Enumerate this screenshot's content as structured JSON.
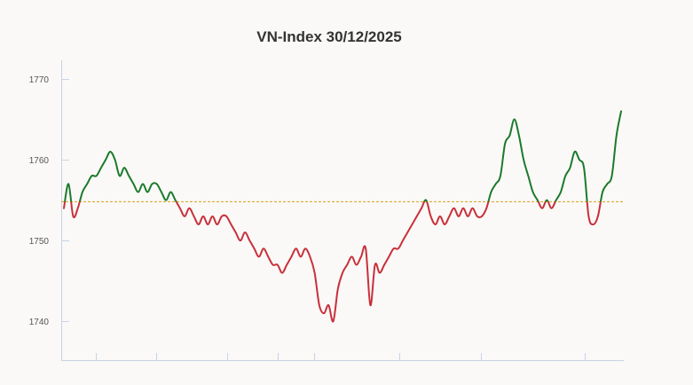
{
  "chart_data": {
    "type": "line",
    "title": "VN-Index 30/12/2025",
    "xlabel": "",
    "ylabel": "",
    "ylim": [
      1735.2,
      1772.3
    ],
    "yticks": [
      1740,
      1750,
      1760,
      1770
    ],
    "reference": {
      "value": 1754.8
    },
    "colors": {
      "up": "#1b7a2b",
      "down": "#c8303b",
      "reference": "#d4a017",
      "axis": "#c8d3e6"
    },
    "grid": false,
    "legend": "none",
    "series": [
      {
        "values": [
          1754.0,
          1757.0,
          1753.0,
          1754.0,
          1756.0,
          1757.0,
          1758.0,
          1758.0,
          1759.0,
          1760.0,
          1761.0,
          1760.0,
          1758.0,
          1759.0,
          1758.0,
          1757.0,
          1756.0,
          1757.0,
          1756.0,
          1757.0,
          1757.0,
          1756.0,
          1755.0,
          1756.0,
          1755.0,
          1754.0,
          1753.0,
          1754.0,
          1753.0,
          1752.0,
          1753.0,
          1752.0,
          1753.0,
          1752.0,
          1753.0,
          1753.0,
          1752.0,
          1751.0,
          1750.0,
          1751.0,
          1750.0,
          1749.0,
          1748.0,
          1749.0,
          1748.0,
          1747.0,
          1747.0,
          1746.0,
          1747.0,
          1748.0,
          1749.0,
          1748.0,
          1749.0,
          1748.0,
          1746.0,
          1742.0,
          1741.0,
          1742.0,
          1740.0,
          1744.0,
          1746.0,
          1747.0,
          1748.0,
          1747.0,
          1748.0,
          1749.0,
          1742.0,
          1747.0,
          1746.0,
          1747.0,
          1748.0,
          1749.0,
          1749.0,
          1750.0,
          1751.0,
          1752.0,
          1753.0,
          1754.0,
          1755.0,
          1753.0,
          1752.0,
          1753.0,
          1752.0,
          1753.0,
          1754.0,
          1753.0,
          1754.0,
          1753.0,
          1754.0,
          1753.0,
          1753.0,
          1754.0,
          1756.0,
          1757.0,
          1758.0,
          1762.0,
          1763.0,
          1765.0,
          1763.0,
          1760.0,
          1758.0,
          1756.0,
          1755.0,
          1754.0,
          1755.0,
          1754.0,
          1755.0,
          1756.0,
          1758.0,
          1759.0,
          1761.0,
          1760.0,
          1759.0,
          1753.0,
          1752.0,
          1753.0,
          1756.0,
          1757.0,
          1758.0,
          1763.0,
          1766.0
        ]
      }
    ]
  }
}
